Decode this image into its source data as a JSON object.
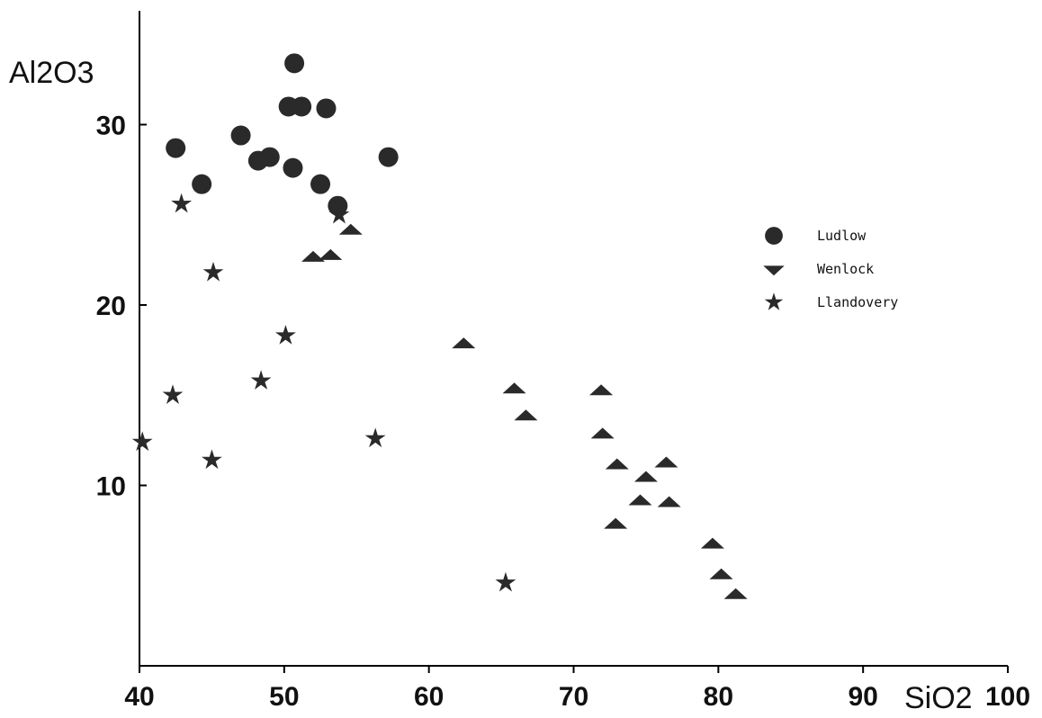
{
  "chart_data": {
    "type": "scatter",
    "title": "",
    "xlabel": "SiO2",
    "ylabel": "Al2O3",
    "xlim": [
      40,
      100
    ],
    "ylim": [
      0,
      35
    ],
    "x_ticks": [
      40,
      50,
      60,
      70,
      80,
      90,
      100
    ],
    "y_ticks": [
      10,
      20,
      30
    ],
    "grid": false,
    "legend_position": "right",
    "colors": {
      "marker": "#2a2a2a",
      "axis": "#000000"
    },
    "series": [
      {
        "name": "Ludlow",
        "marker": "circle",
        "points": [
          [
            42.5,
            28.7
          ],
          [
            44.3,
            26.7
          ],
          [
            47.0,
            29.4
          ],
          [
            48.2,
            28.0
          ],
          [
            49.0,
            28.2
          ],
          [
            50.3,
            31.0
          ],
          [
            50.6,
            27.6
          ],
          [
            50.7,
            33.4
          ],
          [
            51.2,
            31.0
          ],
          [
            52.5,
            26.7
          ],
          [
            52.9,
            30.9
          ],
          [
            53.7,
            25.5
          ],
          [
            57.2,
            28.2
          ]
        ]
      },
      {
        "name": "Wenlock",
        "marker": "triangle",
        "points": [
          [
            52.0,
            22.6
          ],
          [
            53.2,
            22.7
          ],
          [
            54.6,
            24.1
          ],
          [
            62.4,
            17.8
          ],
          [
            65.9,
            15.3
          ],
          [
            66.7,
            13.8
          ],
          [
            71.9,
            15.2
          ],
          [
            72.0,
            12.8
          ],
          [
            73.0,
            11.1
          ],
          [
            72.9,
            7.8
          ],
          [
            74.6,
            9.1
          ],
          [
            75.0,
            10.4
          ],
          [
            76.4,
            11.2
          ],
          [
            76.6,
            9.0
          ],
          [
            79.6,
            6.7
          ],
          [
            80.2,
            5.0
          ],
          [
            81.2,
            3.9
          ]
        ]
      },
      {
        "name": "Llandovery",
        "marker": "star",
        "points": [
          [
            40.2,
            12.4
          ],
          [
            42.3,
            15.0
          ],
          [
            42.9,
            25.6
          ],
          [
            45.1,
            21.8
          ],
          [
            45.0,
            11.4
          ],
          [
            48.4,
            15.8
          ],
          [
            50.1,
            18.3
          ],
          [
            53.8,
            25.0
          ],
          [
            56.3,
            12.6
          ],
          [
            65.3,
            4.6
          ]
        ]
      }
    ]
  }
}
